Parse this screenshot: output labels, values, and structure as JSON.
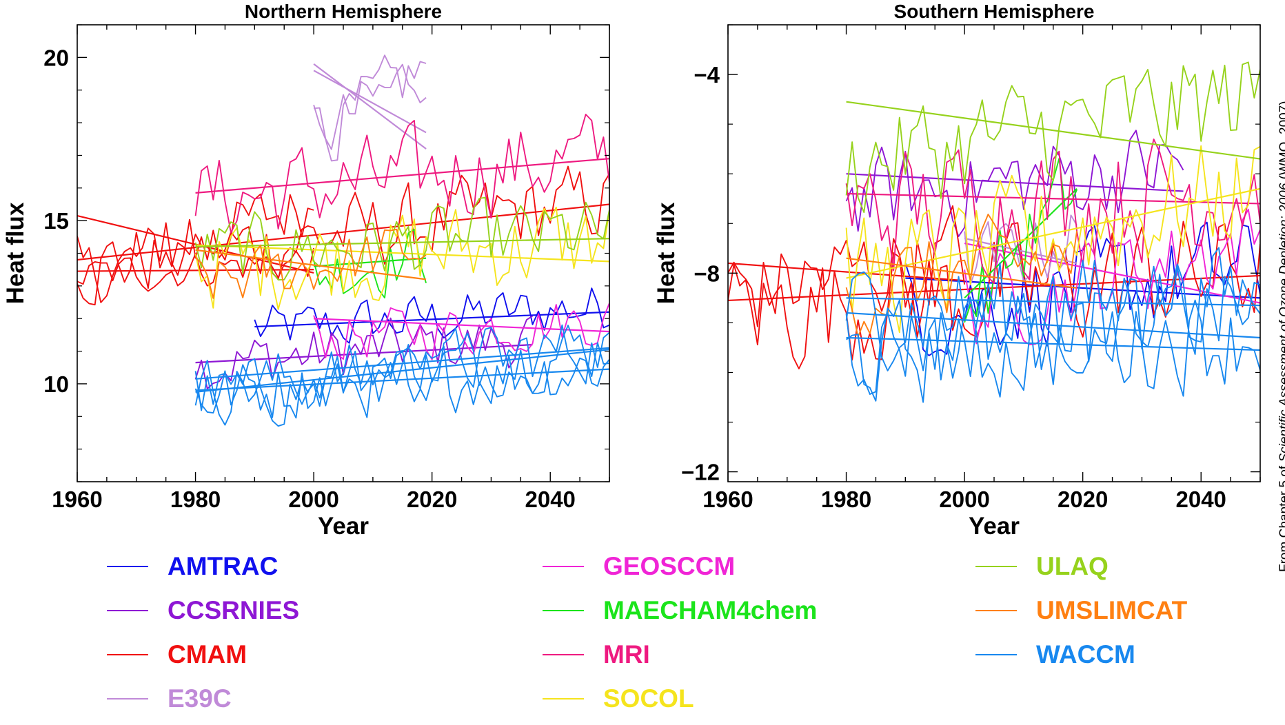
{
  "credit": {
    "prefix": "From Chapter 5 of ",
    "italic": "Scientific Assessment of Ozone Depletion: 2006",
    "suffix": " (WMO, 2007)."
  },
  "legend": {
    "items": [
      {
        "label": "AMTRAC",
        "color": "#1010ee"
      },
      {
        "label": "CCSRNIES",
        "color": "#8e17d4"
      },
      {
        "label": "CMAM",
        "color": "#f01010"
      },
      {
        "label": "E39C",
        "color": "#c08ad8"
      },
      {
        "label": "GEOSCCM",
        "color": "#f024d6"
      },
      {
        "label": "MAECHAM4chem",
        "color": "#1be41b"
      },
      {
        "label": "MRI",
        "color": "#ee1a80"
      },
      {
        "label": "SOCOL",
        "color": "#f5e41d"
      },
      {
        "label": "ULAQ",
        "color": "#96d21c"
      },
      {
        "label": "UMSLIMCAT",
        "color": "#ff8012"
      },
      {
        "label": "WACCM",
        "color": "#1888ef"
      }
    ]
  },
  "chart_data": [
    {
      "type": "line",
      "title": "Northern Hemisphere",
      "xlabel": "Year",
      "ylabel": "Heat flux",
      "xlim": [
        1960,
        2050
      ],
      "ylim": [
        7,
        21
      ],
      "xticks": [
        1960,
        1980,
        2000,
        2020,
        2040
      ],
      "yticks": [
        10,
        15,
        20
      ],
      "grid": false,
      "series": [
        {
          "name": "AMTRAC",
          "color": "#1010ee",
          "trend": [
            [
              1990,
              11.75
            ],
            [
              2050,
              12.2
            ]
          ],
          "noise": [
            1990,
            2050,
            11.6,
            12.4,
            0.8
          ]
        },
        {
          "name": "CCSRNIES",
          "color": "#8e17d4",
          "trend": [
            [
              1980,
              10.65
            ],
            [
              2037,
              11.2
            ]
          ],
          "noise": [
            1980,
            2037,
            10.6,
            11.4,
            0.9
          ]
        },
        {
          "name": "CMAM",
          "color": "#f01010",
          "trend": [
            [
              1960,
              15.15
            ],
            [
              2000,
              13.4
            ]
          ],
          "noise": [
            1960,
            2000,
            13.2,
            15.6,
            1.0
          ]
        },
        {
          "name": "CMAM",
          "color": "#f01010",
          "trend": [
            [
              1960,
              13.8
            ],
            [
              2050,
              15.5
            ]
          ],
          "noise": [
            1960,
            2050,
            13.6,
            15.6,
            1.2
          ]
        },
        {
          "name": "CMAM",
          "color": "#f01010",
          "trend": [
            [
              1960,
              13.45
            ],
            [
              2000,
              13.5
            ]
          ],
          "noise": [
            1960,
            2000,
            13.3,
            13.8,
            0.6
          ]
        },
        {
          "name": "E39C",
          "color": "#c08ad8",
          "trend": [
            [
              2000,
              19.6
            ],
            [
              2019,
              17.7
            ]
          ],
          "noise": [
            2000,
            2019,
            17.5,
            19.8,
            1.0
          ]
        },
        {
          "name": "E39C",
          "color": "#c08ad8",
          "trend": [
            [
              2000,
              19.8
            ],
            [
              2019,
              17.2
            ]
          ],
          "noise": [
            2000,
            2019,
            17.5,
            19.8,
            1.0
          ]
        },
        {
          "name": "GEOSCCM",
          "color": "#f024d6",
          "trend": [
            [
              2000,
              12.0
            ],
            [
              2050,
              11.6
            ]
          ],
          "noise": [
            2000,
            2050,
            11.4,
            12.0,
            0.8
          ]
        },
        {
          "name": "MAECHAM4chem",
          "color": "#1be41b",
          "trend": [
            [
              2000,
              13.6
            ],
            [
              2019,
              13.85
            ]
          ],
          "noise": [
            2000,
            2019,
            13.4,
            14.0,
            1.0
          ]
        },
        {
          "name": "MRI",
          "color": "#ee1a80",
          "trend": [
            [
              1980,
              15.85
            ],
            [
              2050,
              16.9
            ]
          ],
          "noise": [
            1980,
            2050,
            15.6,
            17.0,
            1.4
          ]
        },
        {
          "name": "SOCOL",
          "color": "#f5e41d",
          "trend": [
            [
              1980,
              14.25
            ],
            [
              2050,
              13.75
            ]
          ],
          "noise": [
            1980,
            2050,
            13.6,
            14.4,
            1.4
          ]
        },
        {
          "name": "ULAQ",
          "color": "#96d21c",
          "trend": [
            [
              1980,
              14.2
            ],
            [
              2050,
              14.45
            ]
          ],
          "noise": [
            1980,
            2050,
            14.0,
            14.6,
            1.1
          ]
        },
        {
          "name": "UMSLIMCAT",
          "color": "#ff8012",
          "trend": [
            [
              1980,
              14.1
            ],
            [
              2019,
              13.2
            ]
          ],
          "noise": [
            1980,
            2019,
            13.0,
            14.2,
            0.9
          ]
        },
        {
          "name": "WACCM",
          "color": "#1888ef",
          "trend": [
            [
              1980,
              9.8
            ],
            [
              2050,
              10.45
            ]
          ],
          "noise": [
            1980,
            2050,
            9.6,
            10.6,
            1.0
          ]
        },
        {
          "name": "WACCM",
          "color": "#1888ef",
          "trend": [
            [
              1980,
              9.75
            ],
            [
              2050,
              11.05
            ]
          ],
          "noise": [
            1980,
            2050,
            9.6,
            11.2,
            1.0
          ]
        },
        {
          "name": "WACCM",
          "color": "#1888ef",
          "trend": [
            [
              1980,
              10.15
            ],
            [
              2050,
              11.1
            ]
          ],
          "noise": [
            1980,
            2050,
            9.8,
            11.2,
            1.0
          ]
        }
      ]
    },
    {
      "type": "line",
      "title": "Southern Hemisphere",
      "xlabel": "Year",
      "ylabel": "Heat flux",
      "xlim": [
        1960,
        2050
      ],
      "ylim": [
        -12.2,
        -3.0
      ],
      "xticks": [
        1960,
        1980,
        2000,
        2020,
        2040
      ],
      "yticks": [
        -12,
        -8,
        -4
      ],
      "ytick_labels": [
        "−12",
        "−8",
        "−4"
      ],
      "grid": false,
      "series": [
        {
          "name": "AMTRAC",
          "color": "#1010ee",
          "trend": [
            [
              1990,
              -8.1
            ],
            [
              2050,
              -8.5
            ]
          ],
          "noise": [
            1990,
            2050,
            -8.7,
            -7.9,
            1.0
          ]
        },
        {
          "name": "CCSRNIES",
          "color": "#8e17d4",
          "trend": [
            [
              1980,
              -6.0
            ],
            [
              2037,
              -6.35
            ]
          ],
          "noise": [
            1980,
            2037,
            -6.5,
            -5.8,
            0.9
          ]
        },
        {
          "name": "CMAM",
          "color": "#f01010",
          "trend": [
            [
              1960,
              -7.8
            ],
            [
              2000,
              -8.15
            ]
          ],
          "noise": [
            1960,
            2000,
            -8.4,
            -7.6,
            1.0
          ]
        },
        {
          "name": "CMAM",
          "color": "#f01010",
          "trend": [
            [
              1960,
              -8.55
            ],
            [
              2050,
              -8.05
            ]
          ],
          "noise": [
            1960,
            2050,
            -8.8,
            -7.9,
            1.2
          ]
        },
        {
          "name": "E39C",
          "color": "#c08ad8",
          "trend": [
            [
              2000,
              -7.3
            ],
            [
              2019,
              -7.8
            ]
          ],
          "noise": [
            2000,
            2019,
            -7.9,
            -7.2,
            0.8
          ]
        },
        {
          "name": "GEOSCCM",
          "color": "#f024d6",
          "trend": [
            [
              2000,
              -7.4
            ],
            [
              2050,
              -8.6
            ]
          ],
          "noise": [
            2000,
            2050,
            -8.7,
            -7.3,
            0.9
          ]
        },
        {
          "name": "MAECHAM4chem",
          "color": "#1be41b",
          "trend": [
            [
              2000,
              -8.5
            ],
            [
              2019,
              -6.3
            ]
          ],
          "noise": [
            2000,
            2019,
            -8.6,
            -6.2,
            0.9
          ]
        },
        {
          "name": "MRI",
          "color": "#ee1a80",
          "trend": [
            [
              1980,
              -6.4
            ],
            [
              2050,
              -6.6
            ]
          ],
          "noise": [
            1980,
            2050,
            -6.8,
            -6.2,
            1.3
          ]
        },
        {
          "name": "SOCOL",
          "color": "#f5e41d",
          "trend": [
            [
              1980,
              -8.1
            ],
            [
              2050,
              -6.3
            ]
          ],
          "noise": [
            1980,
            2050,
            -8.2,
            -6.2,
            1.2
          ]
        },
        {
          "name": "ULAQ",
          "color": "#96d21c",
          "trend": [
            [
              1980,
              -4.55
            ],
            [
              2050,
              -5.7
            ]
          ],
          "noise": [
            1980,
            2050,
            -5.8,
            -4.4,
            1.1
          ]
        },
        {
          "name": "UMSLIMCAT",
          "color": "#ff8012",
          "trend": [
            [
              1980,
              -7.7
            ],
            [
              2019,
              -8.3
            ]
          ],
          "noise": [
            1980,
            2019,
            -8.4,
            -7.6,
            0.9
          ]
        },
        {
          "name": "WACCM",
          "color": "#1888ef",
          "trend": [
            [
              1980,
              -8.5
            ],
            [
              2050,
              -8.65
            ]
          ],
          "noise": [
            1980,
            2050,
            -8.8,
            -8.4,
            1.0
          ]
        },
        {
          "name": "WACCM",
          "color": "#1888ef",
          "trend": [
            [
              1980,
              -8.8
            ],
            [
              2050,
              -9.3
            ]
          ],
          "noise": [
            1980,
            2050,
            -9.4,
            -8.7,
            1.0
          ]
        },
        {
          "name": "WACCM",
          "color": "#1888ef",
          "trend": [
            [
              1980,
              -9.3
            ],
            [
              2050,
              -9.55
            ]
          ],
          "noise": [
            1980,
            2050,
            -9.7,
            -9.2,
            1.0
          ]
        }
      ]
    }
  ]
}
